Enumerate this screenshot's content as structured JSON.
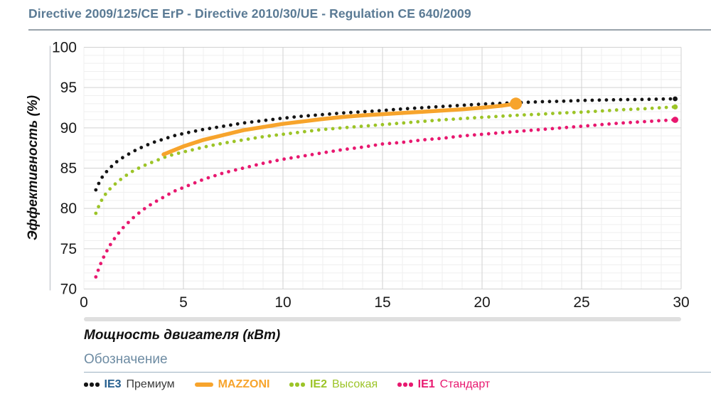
{
  "header": {
    "title": "Directive 2009/125/CE ErP - Directive 2010/30/UE - Regulation CE 640/2009"
  },
  "chart_data": {
    "type": "line",
    "title": "",
    "xlabel": "Мощность двигателя (кВт)",
    "ylabel": "Эффективность (%)",
    "xlim": [
      0,
      30
    ],
    "ylim": [
      70,
      100
    ],
    "x_ticks": [
      0,
      5,
      10,
      15,
      20,
      25,
      30
    ],
    "y_ticks": [
      100,
      95,
      90,
      85,
      80,
      75,
      70
    ],
    "grid": "major every 5 units, minor every 1 unit, both axes",
    "legend_position": "bottom",
    "series": [
      {
        "id": "ie3-premium",
        "name": "IE3 Премиум",
        "color": "#141414",
        "style": "dotted",
        "end_marker_radius": 3.4,
        "points": [
          [
            0.6,
            82.3
          ],
          [
            0.8,
            83.4
          ],
          [
            1,
            84.2
          ],
          [
            1.3,
            85.0
          ],
          [
            1.6,
            85.7
          ],
          [
            2,
            86.4
          ],
          [
            2.5,
            87.1
          ],
          [
            3,
            87.7
          ],
          [
            3.5,
            88.2
          ],
          [
            4,
            88.6
          ],
          [
            4.5,
            89.0
          ],
          [
            5,
            89.3
          ],
          [
            6,
            89.8
          ],
          [
            7,
            90.2
          ],
          [
            8,
            90.6
          ],
          [
            9,
            90.9
          ],
          [
            10,
            91.2
          ],
          [
            11,
            91.45
          ],
          [
            12,
            91.65
          ],
          [
            13,
            91.85
          ],
          [
            14,
            92.0
          ],
          [
            15,
            92.15
          ],
          [
            16,
            92.35
          ],
          [
            17,
            92.5
          ],
          [
            18,
            92.65
          ],
          [
            19,
            92.8
          ],
          [
            20,
            92.95
          ],
          [
            21,
            93.05
          ],
          [
            22,
            93.15
          ],
          [
            23,
            93.25
          ],
          [
            24,
            93.3
          ],
          [
            25,
            93.4
          ],
          [
            26,
            93.45
          ],
          [
            27,
            93.5
          ],
          [
            28,
            93.52
          ],
          [
            29,
            93.57
          ],
          [
            29.7,
            93.6
          ]
        ]
      },
      {
        "id": "mazzoni",
        "name": "MAZZONI",
        "color": "#F7A42C",
        "style": "solid",
        "end_marker_radius": 8.5,
        "points": [
          [
            4,
            86.7
          ],
          [
            5,
            87.7
          ],
          [
            6,
            88.5
          ],
          [
            7,
            89.1
          ],
          [
            8,
            89.7
          ],
          [
            9,
            90.1
          ],
          [
            10,
            90.5
          ],
          [
            11,
            90.8
          ],
          [
            12,
            91.1
          ],
          [
            13,
            91.35
          ],
          [
            14,
            91.55
          ],
          [
            15,
            91.7
          ],
          [
            16,
            91.85
          ],
          [
            17,
            92.0
          ],
          [
            18,
            92.15
          ],
          [
            19,
            92.3
          ],
          [
            20,
            92.5
          ],
          [
            21,
            92.75
          ],
          [
            21.7,
            93.0
          ]
        ]
      },
      {
        "id": "ie2-high",
        "name": "IE2 Высокая",
        "color": "#9CC427",
        "style": "dotted",
        "end_marker_radius": 3.6,
        "points": [
          [
            0.6,
            79.4
          ],
          [
            0.8,
            80.6
          ],
          [
            1,
            81.5
          ],
          [
            1.3,
            82.4
          ],
          [
            1.6,
            83.1
          ],
          [
            2,
            83.9
          ],
          [
            2.5,
            84.7
          ],
          [
            3,
            85.3
          ],
          [
            3.5,
            85.8
          ],
          [
            4,
            86.3
          ],
          [
            4.5,
            86.7
          ],
          [
            5,
            87.0
          ],
          [
            6,
            87.6
          ],
          [
            7,
            88.1
          ],
          [
            8,
            88.5
          ],
          [
            9,
            88.9
          ],
          [
            10,
            89.2
          ],
          [
            11,
            89.5
          ],
          [
            12,
            89.8
          ],
          [
            13,
            90.0
          ],
          [
            14,
            90.2
          ],
          [
            15,
            90.4
          ],
          [
            16,
            90.6
          ],
          [
            17,
            90.8
          ],
          [
            18,
            91.0
          ],
          [
            19,
            91.15
          ],
          [
            20,
            91.3
          ],
          [
            21,
            91.45
          ],
          [
            22,
            91.6
          ],
          [
            23,
            91.7
          ],
          [
            24,
            91.85
          ],
          [
            25,
            91.95
          ],
          [
            26,
            92.1
          ],
          [
            27,
            92.25
          ],
          [
            28,
            92.35
          ],
          [
            29,
            92.5
          ],
          [
            29.7,
            92.6
          ]
        ]
      },
      {
        "id": "ie1-standard",
        "name": "IE1 Стандарт",
        "color": "#E8186F",
        "style": "dotted",
        "end_marker_radius": 4.4,
        "points": [
          [
            0.6,
            71.5
          ],
          [
            0.8,
            72.9
          ],
          [
            1,
            74.0
          ],
          [
            1.3,
            75.4
          ],
          [
            1.6,
            76.5
          ],
          [
            2,
            77.7
          ],
          [
            2.5,
            78.9
          ],
          [
            3,
            79.9
          ],
          [
            3.5,
            80.7
          ],
          [
            4,
            81.4
          ],
          [
            4.5,
            82.1
          ],
          [
            5,
            82.6
          ],
          [
            6,
            83.6
          ],
          [
            7,
            84.4
          ],
          [
            8,
            85.0
          ],
          [
            9,
            85.6
          ],
          [
            10,
            86.1
          ],
          [
            11,
            86.5
          ],
          [
            12,
            86.9
          ],
          [
            13,
            87.3
          ],
          [
            14,
            87.6
          ],
          [
            15,
            88.0
          ],
          [
            16,
            88.2
          ],
          [
            17,
            88.5
          ],
          [
            18,
            88.7
          ],
          [
            19,
            89.0
          ],
          [
            20,
            89.2
          ],
          [
            21,
            89.4
          ],
          [
            22,
            89.6
          ],
          [
            23,
            89.8
          ],
          [
            24,
            90.0
          ],
          [
            25,
            90.2
          ],
          [
            26,
            90.4
          ],
          [
            27,
            90.6
          ],
          [
            28,
            90.75
          ],
          [
            29,
            90.9
          ],
          [
            29.7,
            91.0
          ]
        ]
      }
    ]
  },
  "legend": {
    "title": "Обозначение",
    "items": [
      {
        "id": "ie3-premium",
        "code": "IE3",
        "label": "Премиум",
        "marker": "dotted",
        "marker_color": "#141414",
        "code_color": "#265f8f",
        "label_color": "#3a3a3a"
      },
      {
        "id": "mazzoni",
        "code": "MAZZONI",
        "label": "",
        "marker": "solid",
        "marker_color": "#F7A42C",
        "code_color": "#F7A42C",
        "label_color": "#F7A42C"
      },
      {
        "id": "ie2-high",
        "code": "IE2",
        "label": "Высокая",
        "marker": "dotted",
        "marker_color": "#9CC427",
        "code_color": "#9CC427",
        "label_color": "#9CC427"
      },
      {
        "id": "ie1-standard",
        "code": "IE1",
        "label": "Стандарт",
        "marker": "dotted",
        "marker_color": "#E8186F",
        "code_color": "#E8186F",
        "label_color": "#E8186F"
      }
    ]
  },
  "colors": {
    "title": "#5a7a94",
    "legend_title": "#6e8ca3",
    "grid_major": "#d2d2d2",
    "grid_minor": "#efefef",
    "scrollbar": "#dfdfdf"
  }
}
